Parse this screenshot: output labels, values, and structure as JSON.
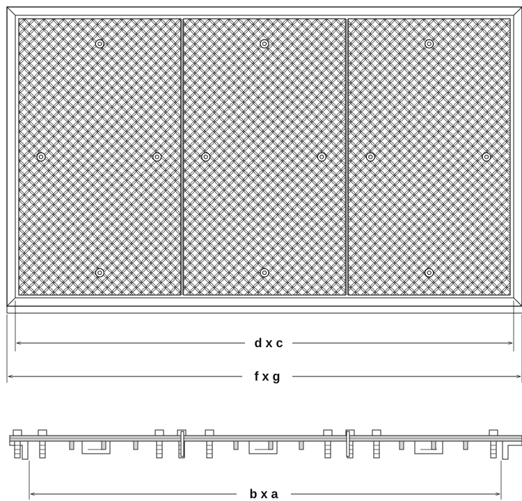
{
  "plan_view": {
    "panel_count": 3,
    "surface_pattern": "diamond tread plate",
    "dimensions": {
      "inner": "d x c",
      "outer": "f x g"
    }
  },
  "section_view": {
    "dimension": "b x a"
  },
  "colors": {
    "line": "#1a1a1a",
    "plate_fill": "#d4d4d4",
    "frame_fill": "#f2f2f2",
    "background": "#ffffff"
  }
}
